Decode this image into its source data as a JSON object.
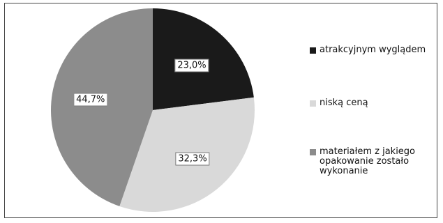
{
  "chart_data": {
    "type": "pie",
    "slices": [
      {
        "label": "atrakcyjnym wyglądem",
        "value": 23.0,
        "display": "23,0%",
        "color": "#1a1a1a"
      },
      {
        "label": "niską ceną",
        "value": 32.3,
        "display": "32,3%",
        "color": "#d9d9d9"
      },
      {
        "label": "materiałem z jakiego opakowanie zostało wykonanie",
        "value": 44.7,
        "display": "44,7%",
        "color": "#8c8c8c"
      }
    ],
    "legend_position": "right",
    "start_angle": "12 o'clock, clockwise"
  },
  "legend": {
    "items": [
      {
        "label": "atrakcyjnym wyglądem",
        "color": "#1a1a1a"
      },
      {
        "label": "niską ceną",
        "color": "#d9d9d9"
      },
      {
        "label": "materiałem z jakiego opakowanie zostało wykonanie",
        "color": "#8c8c8c"
      }
    ]
  }
}
